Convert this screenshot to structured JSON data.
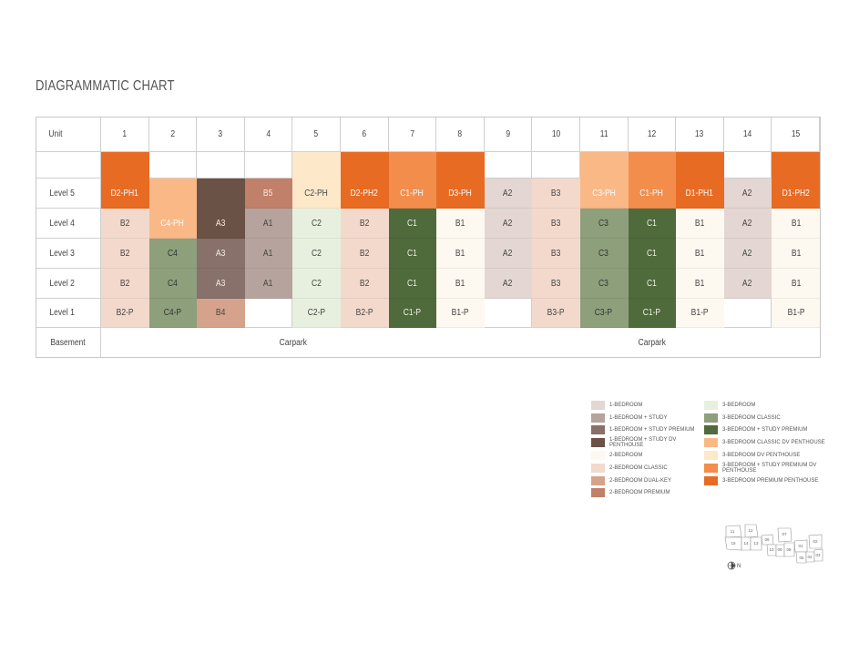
{
  "title": "DIAGRAMMATIC CHART",
  "header": {
    "unit_label": "Unit",
    "units": [
      "1",
      "2",
      "3",
      "4",
      "5",
      "6",
      "7",
      "8",
      "9",
      "10",
      "11",
      "12",
      "13",
      "14",
      "15"
    ]
  },
  "levels": [
    "Level 5",
    "Level 4",
    "Level 3",
    "Level 2",
    "Level 1"
  ],
  "basement": {
    "label": "Basement",
    "cells": [
      "Carpark",
      "Carpark"
    ]
  },
  "types": {
    "1br": {
      "name": "1-BEDROOM",
      "color": "#E3D6D3",
      "text": "#444"
    },
    "1brs": {
      "name": "1-BEDROOM + STUDY",
      "color": "#B6A39D",
      "text": "#444"
    },
    "1brsp": {
      "name": "1-BEDROOM + STUDY PREMIUM",
      "color": "#87716A",
      "text": "#f4ece8"
    },
    "1brsph": {
      "name": "1-BEDROOM + STUDY DV PENTHOUSE",
      "color": "#6A5247",
      "text": "#f4ece8"
    },
    "2br": {
      "name": "2-BEDROOM",
      "color": "#FDF8F0",
      "text": "#444"
    },
    "2brc": {
      "name": "2-BEDROOM CLASSIC",
      "color": "#F3D9CC",
      "text": "#444"
    },
    "2brdk": {
      "name": "2-BEDROOM DUAL-KEY",
      "color": "#D5A28C",
      "text": "#444"
    },
    "2brp": {
      "name": "2-BEDROOM PREMIUM",
      "color": "#C18069",
      "text": "#f8eee8"
    },
    "3br": {
      "name": "3-BEDROOM",
      "color": "#E7F0DE",
      "text": "#444"
    },
    "3brc": {
      "name": "3-BEDROOM CLASSIC",
      "color": "#8D9F7B",
      "text": "#333"
    },
    "3brsp": {
      "name": "3-BEDROOM + STUDY PREMIUM",
      "color": "#4F6A3B",
      "text": "#eef3e6"
    },
    "3brcph": {
      "name": "3-BEDROOM CLASSIC DV PENTHOUSE",
      "color": "#FBB887",
      "text": "#fff"
    },
    "3brph": {
      "name": "3-BEDROOM DV PENTHOUSE",
      "color": "#FDE9CA",
      "text": "#444"
    },
    "3brspph": {
      "name": "3-BEDROOM + STUDY PREMIUM DV PENTHOUSE",
      "color": "#F38D4B",
      "text": "#fff"
    },
    "3brpph": {
      "name": "3-BEDROOM PREMIUM PENTHOUSE",
      "color": "#E86B24",
      "text": "#fff"
    }
  },
  "legend_left": [
    "1br",
    "1brs",
    "1brsp",
    "1brsph",
    "2br",
    "2brc",
    "2brdk",
    "2brp"
  ],
  "legend_right": [
    "3br",
    "3brc",
    "3brsp",
    "3brcph",
    "3brph",
    "3brspph",
    "3brpph"
  ],
  "columns": [
    [
      {
        "l": "D2-PH1",
        "t": "3brpph",
        "s": 2
      },
      {
        "l": "B2",
        "t": "2brc"
      },
      {
        "l": "B2",
        "t": "2brc"
      },
      {
        "l": "B2",
        "t": "2brc"
      },
      {
        "l": "B2-P",
        "t": "2brc"
      }
    ],
    [
      {
        "l": "",
        "t": null
      },
      {
        "l": "C4-PH",
        "t": "3brcph",
        "s": 2
      },
      {
        "l": "C4",
        "t": "3brc"
      },
      {
        "l": "C4",
        "t": "3brc"
      },
      {
        "l": "C4-P",
        "t": "3brc"
      }
    ],
    [
      {
        "l": "",
        "t": null
      },
      {
        "l": "A3",
        "t": "1brsph",
        "s": 2
      },
      {
        "l": "A3",
        "t": "1brsp"
      },
      {
        "l": "A3",
        "t": "1brsp"
      },
      {
        "l": "B4",
        "t": "2brdk"
      }
    ],
    [
      {
        "l": "",
        "t": null
      },
      {
        "l": "B5",
        "t": "2brp"
      },
      {
        "l": "A1",
        "t": "1brs"
      },
      {
        "l": "A1",
        "t": "1brs"
      },
      {
        "l": "A1",
        "t": "1brs"
      },
      {
        "l": "",
        "t": null
      }
    ],
    [
      {
        "l": "C2-PH",
        "t": "3brph",
        "s": 2
      },
      {
        "l": "C2",
        "t": "3br"
      },
      {
        "l": "C2",
        "t": "3br"
      },
      {
        "l": "C2",
        "t": "3br"
      },
      {
        "l": "C2-P",
        "t": "3br"
      }
    ],
    [
      {
        "l": "D2-PH2",
        "t": "3brpph",
        "s": 2
      },
      {
        "l": "B2",
        "t": "2brc"
      },
      {
        "l": "B2",
        "t": "2brc"
      },
      {
        "l": "B2",
        "t": "2brc"
      },
      {
        "l": "B2-P",
        "t": "2brc"
      }
    ],
    [
      {
        "l": "C1-PH",
        "t": "3brspph",
        "s": 2
      },
      {
        "l": "C1",
        "t": "3brsp"
      },
      {
        "l": "C1",
        "t": "3brsp"
      },
      {
        "l": "C1",
        "t": "3brsp"
      },
      {
        "l": "C1-P",
        "t": "3brsp"
      }
    ],
    [
      {
        "l": "D3-PH",
        "t": "3brpph",
        "s": 2
      },
      {
        "l": "B1",
        "t": "2br"
      },
      {
        "l": "B1",
        "t": "2br"
      },
      {
        "l": "B1",
        "t": "2br"
      },
      {
        "l": "B1-P",
        "t": "2br"
      }
    ],
    [
      {
        "l": "",
        "t": null
      },
      {
        "l": "A2",
        "t": "1br"
      },
      {
        "l": "A2",
        "t": "1br"
      },
      {
        "l": "A2",
        "t": "1br"
      },
      {
        "l": "A2",
        "t": "1br"
      },
      {
        "l": "",
        "t": null
      }
    ],
    [
      {
        "l": "",
        "t": null
      },
      {
        "l": "B3",
        "t": "2brc"
      },
      {
        "l": "B3",
        "t": "2brc"
      },
      {
        "l": "B3",
        "t": "2brc"
      },
      {
        "l": "B3",
        "t": "2brc"
      },
      {
        "l": "B3-P",
        "t": "2brc"
      }
    ],
    [
      {
        "l": "C3-PH",
        "t": "3brcph",
        "s": 2
      },
      {
        "l": "C3",
        "t": "3brc"
      },
      {
        "l": "C3",
        "t": "3brc"
      },
      {
        "l": "C3",
        "t": "3brc"
      },
      {
        "l": "C3-P",
        "t": "3brc"
      }
    ],
    [
      {
        "l": "C1-PH",
        "t": "3brspph",
        "s": 2
      },
      {
        "l": "C1",
        "t": "3brsp"
      },
      {
        "l": "C1",
        "t": "3brsp"
      },
      {
        "l": "C1",
        "t": "3brsp"
      },
      {
        "l": "C1-P",
        "t": "3brsp"
      }
    ],
    [
      {
        "l": "D1-PH1",
        "t": "3brpph",
        "s": 2
      },
      {
        "l": "B1",
        "t": "2br"
      },
      {
        "l": "B1",
        "t": "2br"
      },
      {
        "l": "B1",
        "t": "2br"
      },
      {
        "l": "B1-P",
        "t": "2br"
      }
    ],
    [
      {
        "l": "",
        "t": null
      },
      {
        "l": "A2",
        "t": "1br"
      },
      {
        "l": "A2",
        "t": "1br"
      },
      {
        "l": "A2",
        "t": "1br"
      },
      {
        "l": "A2",
        "t": "1br"
      },
      {
        "l": "",
        "t": null
      }
    ],
    [
      {
        "l": "D1-PH2",
        "t": "3brpph",
        "s": 2
      },
      {
        "l": "B1",
        "t": "2br"
      },
      {
        "l": "B1",
        "t": "2br"
      },
      {
        "l": "B1",
        "t": "2br"
      },
      {
        "l": "B1-P",
        "t": "2br"
      }
    ]
  ],
  "site_plan": {
    "blocks": [
      "11",
      "12",
      "15",
      "14",
      "13",
      "06",
      "07",
      "10",
      "09",
      "08",
      "01",
      "02",
      "05",
      "04",
      "03"
    ],
    "north_label": "N"
  }
}
